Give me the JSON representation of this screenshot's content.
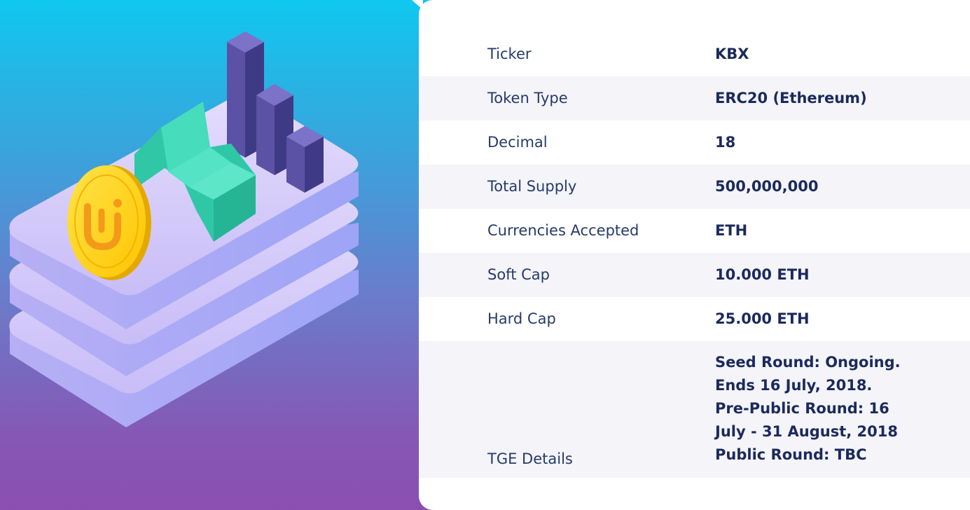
{
  "token_details": {
    "rows": [
      {
        "label": "Ticker",
        "value": "KBX"
      },
      {
        "label": "Token Type",
        "value": "ERC20 (Ethereum)"
      },
      {
        "label": "Decimal",
        "value": "18"
      },
      {
        "label": "Total Supply",
        "value": "500,000,000"
      },
      {
        "label": "Currencies Accepted",
        "value": "ETH"
      },
      {
        "label": "Soft Cap",
        "value": "10.000 ETH"
      },
      {
        "label": "Hard Cap",
        "value": "25.000 ETH"
      },
      {
        "label": "TGE Details",
        "value_lines": [
          "Seed Round: Ongoing.",
          "Ends 16 July, 2018.",
          "Pre-Public Round: 16",
          "July - 31 August, 2018",
          "Public Round: TBC"
        ]
      }
    ]
  },
  "illustration": {
    "icons": [
      "coin-icon",
      "trend-arrow-icon",
      "bar-chart-icon",
      "stacked-platform-icon"
    ],
    "colors": {
      "gradient_top": "#10c8ef",
      "gradient_bottom": "#8b4fb1",
      "platform": "#d6cffb",
      "bars": "#5a52a8",
      "arrow": "#3fd3b5",
      "coin": "#ffd11a"
    }
  },
  "colors": {
    "label_text": "#263a6b",
    "value_text": "#1b2a5c",
    "row_shade": "#f4f4f9",
    "card_bg": "#ffffff"
  }
}
